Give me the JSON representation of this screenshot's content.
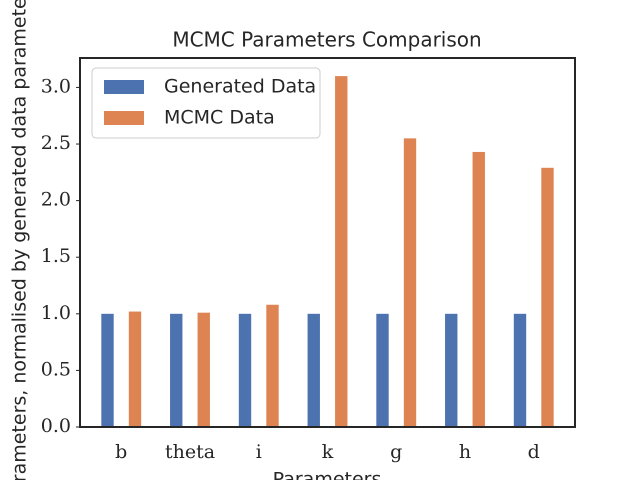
{
  "chart_data": {
    "type": "bar",
    "title": "MCMC Parameters Comparison",
    "x_label": "Parameters",
    "y_label": "Parameters, normalised by generated data parameters",
    "categories": [
      "b",
      "theta",
      "i",
      "k",
      "g",
      "h",
      "d"
    ],
    "series": [
      {
        "name": "Generated Data",
        "color": "#4c72b0",
        "values": [
          1.0,
          1.0,
          1.0,
          1.0,
          1.0,
          1.0,
          1.0
        ]
      },
      {
        "name": "MCMC Data",
        "color": "#dd8452",
        "values": [
          1.02,
          1.01,
          1.08,
          3.1,
          2.55,
          2.43,
          2.29
        ]
      }
    ],
    "ylim": [
      0,
      3.26
    ],
    "yticks": [
      {
        "value": 0,
        "label": "0.0"
      },
      {
        "value": 0.5,
        "label": "0.5"
      },
      {
        "value": 1,
        "label": "1.0"
      },
      {
        "value": 1.5,
        "label": "1.5"
      },
      {
        "value": 2,
        "label": "2.0"
      },
      {
        "value": 2.5,
        "label": "2.5"
      },
      {
        "value": 3,
        "label": "3.0"
      }
    ],
    "legend_position": "upper left",
    "grid": false
  }
}
